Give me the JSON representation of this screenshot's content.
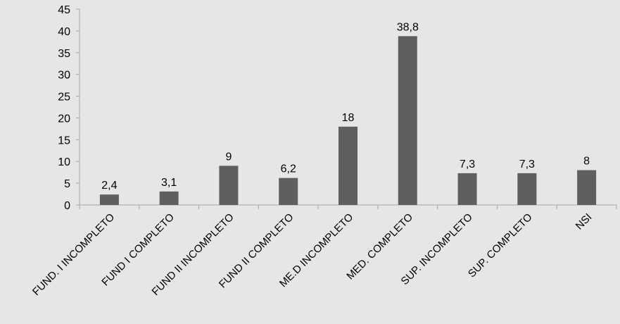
{
  "chart_data": {
    "type": "bar",
    "title": "",
    "xlabel": "",
    "ylabel": "",
    "categories": [
      "FUND. I INCOMPLETO",
      "FUND I COMPLETO",
      "FUND II INCOMPLETO",
      "FUND II COMPLETO",
      "ME.D INCOMPLETO",
      "MED. COMPLETO",
      "SUP. INCOMPLETO",
      "SUP. COMPLETO",
      "NSI"
    ],
    "values": [
      2.4,
      3.1,
      9,
      6.2,
      18,
      38.8,
      7.3,
      7.3,
      8
    ],
    "value_labels": [
      "2,4",
      "3,1",
      "9",
      "6,2",
      "18",
      "38,8",
      "7,3",
      "7,3",
      "8"
    ],
    "ylim": [
      0,
      45
    ],
    "yticks": [
      0,
      5,
      10,
      15,
      20,
      25,
      30,
      35,
      40,
      45
    ],
    "grid": false,
    "legend": "none",
    "colors": {
      "bar": "#5f5f5f",
      "background": "#e6e6e6",
      "axis": "#a6a6a6"
    }
  }
}
